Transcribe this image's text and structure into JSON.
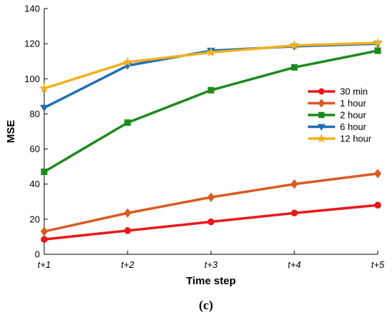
{
  "chart_data": {
    "type": "line",
    "categories": [
      "t+1",
      "t+2",
      "t+3",
      "t+4",
      "t+5"
    ],
    "xlabel": "Time step",
    "ylabel": "MSE",
    "ylim": [
      0,
      140
    ],
    "yticks": [
      0,
      20,
      40,
      60,
      80,
      100,
      120,
      140
    ],
    "grid": false,
    "legend_position": "right",
    "caption": "(c)",
    "series": [
      {
        "name": "30 min",
        "color": "#e8191c",
        "marker": "circle",
        "values": [
          8.5,
          13.5,
          18.5,
          23.5,
          28
        ]
      },
      {
        "name": "1 hour",
        "color": "#d95a22",
        "marker": "diamond",
        "values": [
          13,
          23.5,
          32.5,
          40,
          46
        ]
      },
      {
        "name": "2 hour",
        "color": "#1e8a1e",
        "marker": "square",
        "values": [
          47,
          75,
          93.5,
          106.5,
          116
        ]
      },
      {
        "name": "6 hour",
        "color": "#1f6fb5",
        "marker": "triangle-down",
        "values": [
          83.5,
          107.5,
          116,
          118.5,
          120
        ]
      },
      {
        "name": "12 hour",
        "color": "#f2b01e",
        "marker": "star",
        "values": [
          94.5,
          109.5,
          115,
          119,
          120.5
        ]
      }
    ]
  }
}
